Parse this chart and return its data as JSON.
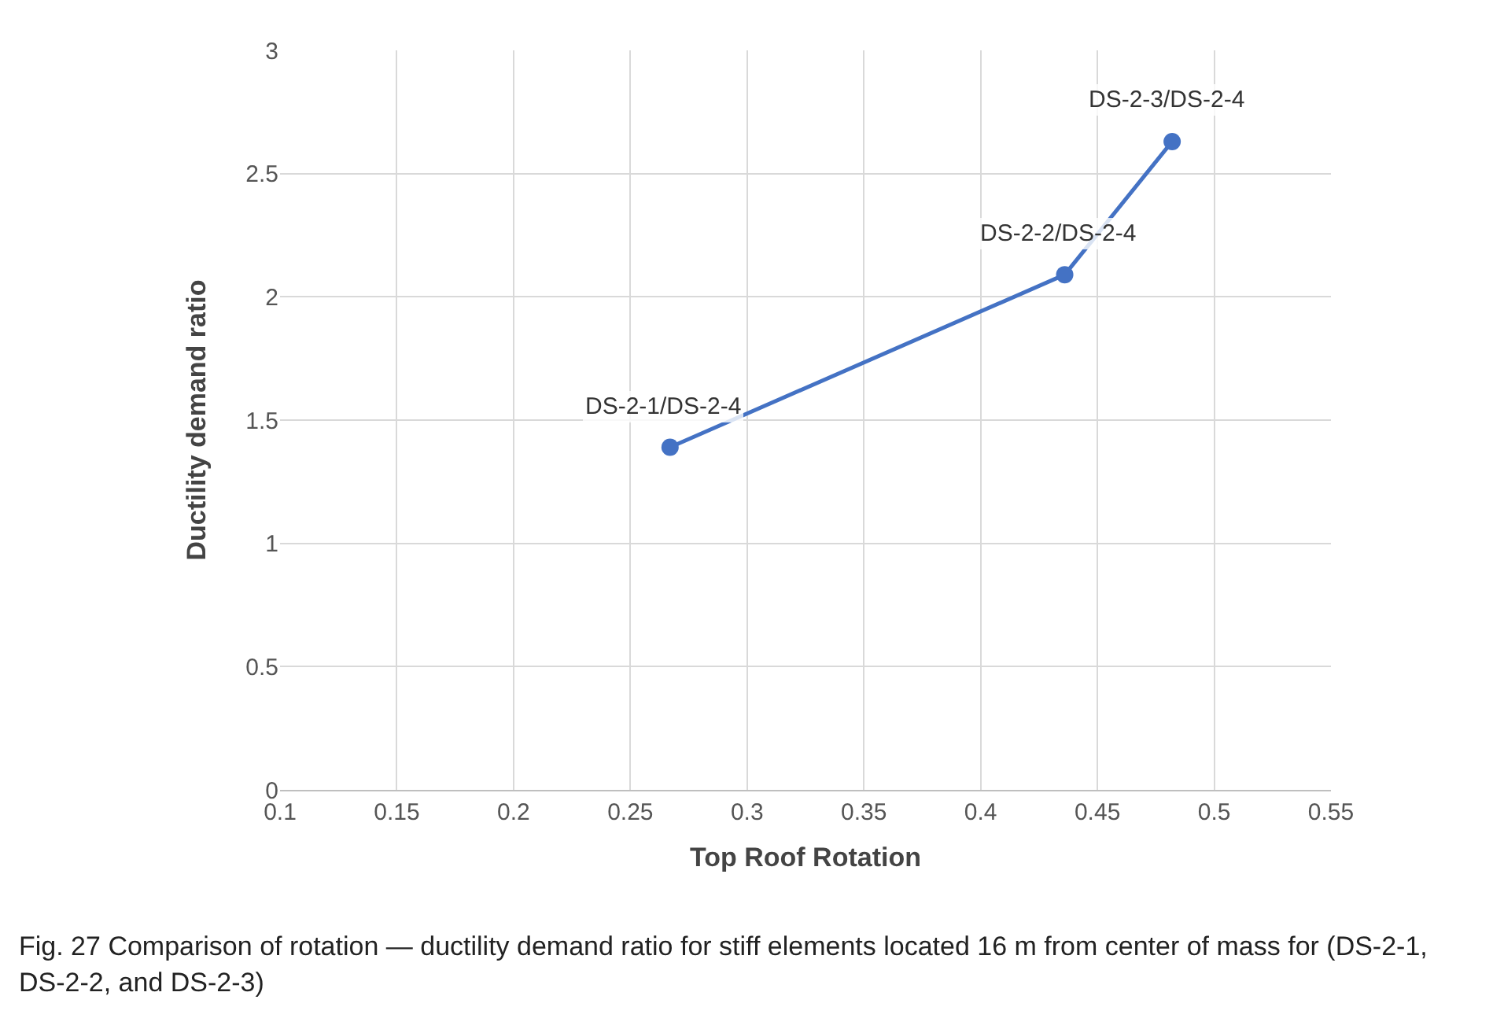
{
  "chart_data": {
    "type": "line",
    "xlabel": "Top Roof Rotation",
    "ylabel": "Ductility demand ratio",
    "x": [
      0.267,
      0.436,
      0.482
    ],
    "series": [
      {
        "color": "#4472c4",
        "values": [
          1.39,
          2.09,
          2.63
        ]
      }
    ],
    "xlim": [
      0.1,
      0.55
    ],
    "xticks": [
      0.1,
      0.15,
      0.2,
      0.25,
      0.3,
      0.35,
      0.4,
      0.45,
      0.5,
      0.55
    ],
    "ylim": [
      0,
      3
    ],
    "yticks": [
      0,
      0.5,
      1,
      1.5,
      2,
      2.5,
      3
    ],
    "grid": true,
    "marker": "circle",
    "line_style": "solid",
    "annotations": [
      {
        "text": "DS-2-1/DS-2-4",
        "x": 0.267,
        "y": 1.39
      },
      {
        "text": "DS-2-2/DS-2-4",
        "x": 0.436,
        "y": 2.09
      },
      {
        "text": "DS-2-3/DS-2-4",
        "x": 0.482,
        "y": 2.63
      },
      "Fig. 27 Comparison of rotation — ductility demand ratio for stiff elements located 16 m from center of mass for (DS-2-1, DS-2-2, and DS-2-3)"
    ]
  }
}
